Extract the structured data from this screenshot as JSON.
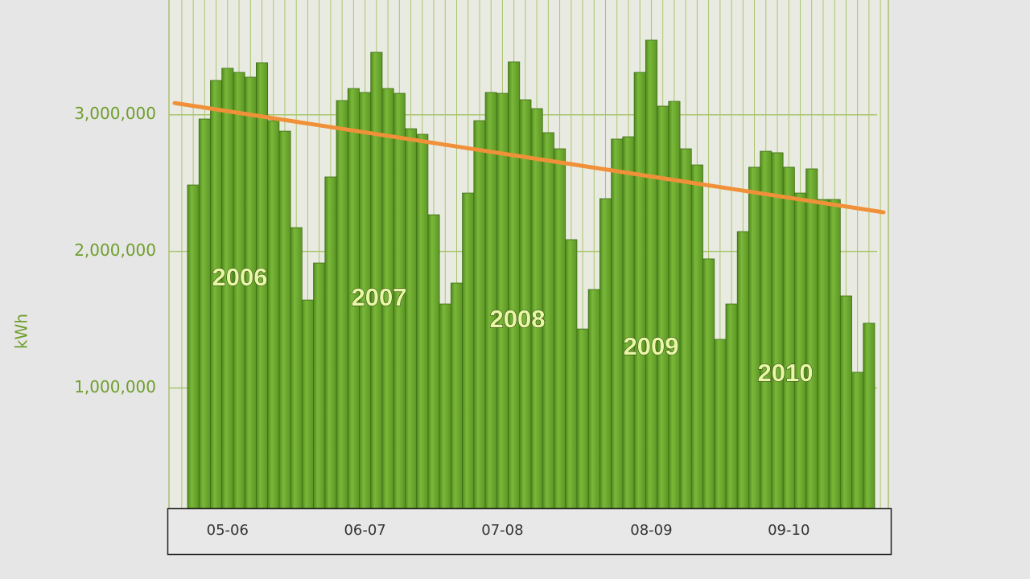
{
  "chart_data": {
    "type": "bar",
    "y_label": "kWh",
    "categories": [
      null,
      null,
      null,
      "05-06",
      null,
      null,
      null,
      null,
      null,
      null,
      null,
      null,
      null,
      null,
      null,
      "06-07",
      null,
      null,
      null,
      null,
      null,
      null,
      null,
      null,
      null,
      null,
      null,
      "07-08",
      null,
      null,
      null,
      null,
      null,
      null,
      null,
      null,
      null,
      null,
      null,
      null,
      "08-09",
      null,
      null,
      null,
      null,
      null,
      null,
      null,
      null,
      null,
      null,
      null,
      "09-10",
      null,
      null,
      null,
      null,
      null,
      null,
      null
    ],
    "values": [
      2486000,
      2969000,
      3251000,
      3340000,
      3310000,
      3275000,
      3381000,
      2957000,
      2880000,
      2174000,
      1644000,
      1915000,
      2545000,
      3104000,
      3192000,
      3163000,
      3457000,
      3192000,
      3157000,
      2898000,
      2857000,
      2268000,
      1615000,
      1768000,
      2427000,
      2957000,
      3163000,
      3157000,
      3387000,
      3110000,
      3045000,
      2869000,
      2751000,
      2086000,
      1432000,
      1721000,
      2386000,
      2822000,
      2839000,
      3310000,
      3546000,
      3063000,
      3098000,
      2751000,
      2633000,
      1945000,
      1356000,
      1615000,
      2145000,
      2616000,
      2733000,
      2722000,
      2616000,
      2427000,
      2604000,
      2380000,
      2380000,
      1674000,
      1115000,
      1474000
    ],
    "color": "#6aa42c",
    "trend": {
      "color": "#f0913a",
      "values": [
        3086000,
        2286000
      ]
    },
    "annotations": [
      "2006",
      "2007",
      "2008",
      "2009",
      "2010"
    ],
    "ylim": [
      120000,
      3840000
    ],
    "yticks": [
      {
        "value": 1000000,
        "label": "1,000,000"
      },
      {
        "value": 2000000,
        "label": "2,000,000"
      },
      {
        "value": 3000000,
        "label": "3,000,000"
      }
    ],
    "grid": true
  }
}
